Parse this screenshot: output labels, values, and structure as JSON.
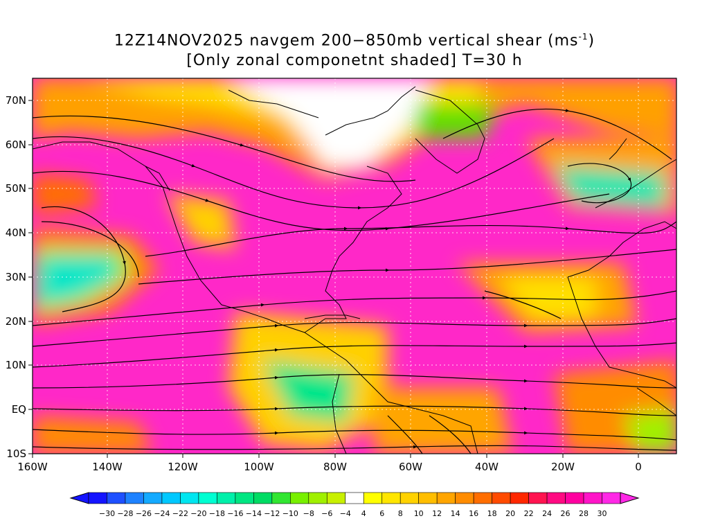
{
  "title": {
    "line1_prefix": "12Z14NOV2025 navgem 200−850mb vertical shear (ms",
    "line1_sup": "-1",
    "line1_suffix": ")",
    "line2": "[Only zonal componetnt shaded] T=30 h"
  },
  "map": {
    "lon_labels": [
      "160W",
      "140W",
      "120W",
      "100W",
      "80W",
      "60W",
      "40W",
      "20W",
      "0"
    ],
    "lat_labels": [
      "70N",
      "60N",
      "50N",
      "40N",
      "30N",
      "20N",
      "10N",
      "EQ",
      "10S"
    ],
    "lon_values": [
      -160,
      -140,
      -120,
      -100,
      -80,
      -60,
      -40,
      -20,
      0
    ],
    "lat_values": [
      70,
      60,
      50,
      40,
      30,
      20,
      10,
      0,
      -10
    ],
    "lon_range": [
      -160,
      10
    ],
    "lat_range": [
      -10,
      75
    ],
    "grid_lines": "dotted",
    "streamlines": true
  },
  "colorbar": {
    "labels": [
      "−30",
      "−28",
      "−26",
      "−24",
      "−22",
      "−20",
      "−18",
      "−16",
      "−14",
      "−12",
      "−10",
      "−8",
      "−6",
      "−4",
      "4",
      "6",
      "8",
      "10",
      "12",
      "14",
      "16",
      "18",
      "20",
      "22",
      "24",
      "26",
      "28",
      "30"
    ],
    "colors": [
      "#1414ff",
      "#1e50ff",
      "#1e82ff",
      "#14aaff",
      "#00c8ff",
      "#00e6f0",
      "#00ffd2",
      "#00f0aa",
      "#00e682",
      "#00dc64",
      "#32e632",
      "#78f000",
      "#a0f000",
      "#c8f000",
      "#ffffff",
      "#ffff00",
      "#ffe600",
      "#ffd200",
      "#ffbe00",
      "#ffa500",
      "#ff8c00",
      "#ff6e00",
      "#ff4b00",
      "#ff2800",
      "#ff1450",
      "#ff0a82",
      "#ff00a0",
      "#ff14c8",
      "#ff28e6"
    ],
    "extend": "both"
  }
}
